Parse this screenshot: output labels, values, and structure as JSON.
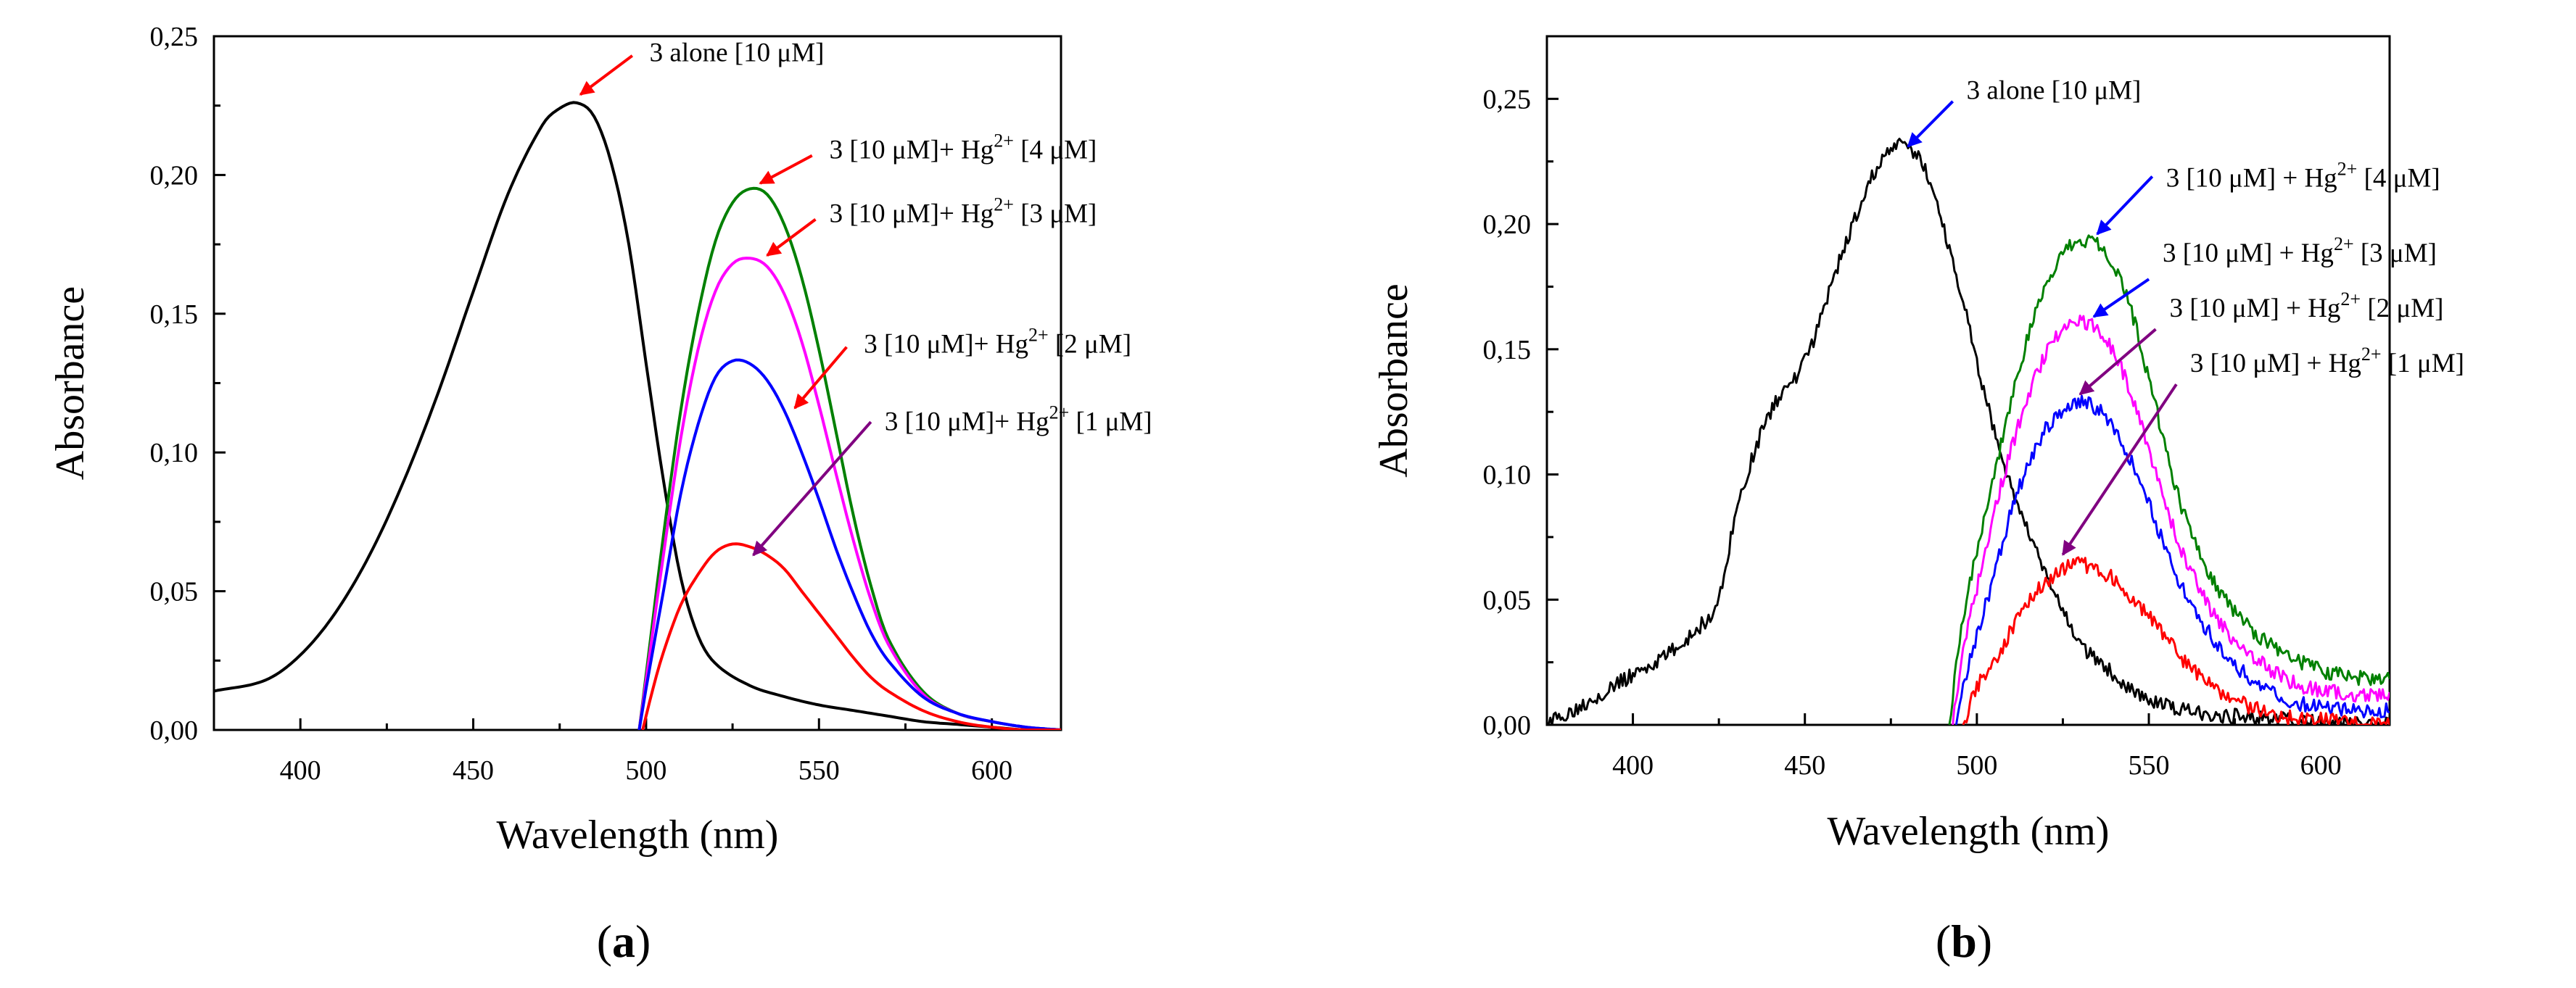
{
  "chart_data": [
    {
      "panel": "a",
      "type": "line",
      "panel_label": {
        "open": "(",
        "letter": "a",
        "close": ")"
      },
      "xlabel": "Wavelength (nm)",
      "ylabel": "Absorbance",
      "xlim": [
        375,
        620
      ],
      "ylim": [
        0,
        0.25
      ],
      "xticks": [
        400,
        450,
        500,
        550,
        600
      ],
      "xtick_labels": [
        "400",
        "450",
        "500",
        "550",
        "600"
      ],
      "yticks": [
        0,
        0.05,
        0.1,
        0.15,
        0.2,
        0.25
      ],
      "ytick_labels": [
        "0,00",
        "0,05",
        "0,10",
        "0,15",
        "0,20",
        "0,25"
      ],
      "series": [
        {
          "name": "3 alone [10 µM]",
          "color": "#000000",
          "noisy": false,
          "x": [
            375,
            390,
            400,
            410,
            420,
            430,
            440,
            450,
            460,
            470,
            475,
            480,
            485,
            490,
            495,
            500,
            505,
            510,
            515,
            520,
            530,
            540,
            550,
            560,
            570,
            580,
            590,
            600,
            610,
            620
          ],
          "y": [
            0.014,
            0.018,
            0.027,
            0.042,
            0.063,
            0.09,
            0.122,
            0.158,
            0.193,
            0.218,
            0.224,
            0.226,
            0.221,
            0.204,
            0.175,
            0.132,
            0.09,
            0.055,
            0.034,
            0.024,
            0.016,
            0.012,
            0.009,
            0.007,
            0.005,
            0.003,
            0.002,
            0.001,
            0.0,
            0.0
          ]
        },
        {
          "name": "3 [10 µM]+ Hg2+ [4 µM]",
          "color": "#008000",
          "noisy": false,
          "x": [
            498,
            500,
            505,
            510,
            515,
            520,
            525,
            530,
            535,
            540,
            545,
            550,
            555,
            560,
            565,
            570,
            580,
            590,
            600,
            610,
            620
          ],
          "y": [
            0.0,
            0.02,
            0.07,
            0.115,
            0.15,
            0.176,
            0.19,
            0.195,
            0.193,
            0.182,
            0.163,
            0.137,
            0.107,
            0.077,
            0.052,
            0.033,
            0.014,
            0.006,
            0.003,
            0.001,
            0.0
          ]
        },
        {
          "name": "3 [10 µM]+ Hg2+ [3 µM]",
          "color": "#ff00ff",
          "noisy": false,
          "x": [
            498,
            500,
            505,
            510,
            515,
            520,
            525,
            530,
            535,
            540,
            545,
            550,
            555,
            560,
            565,
            570,
            580,
            590,
            600,
            610,
            620
          ],
          "y": [
            0.0,
            0.018,
            0.063,
            0.105,
            0.137,
            0.158,
            0.168,
            0.17,
            0.167,
            0.157,
            0.14,
            0.117,
            0.092,
            0.068,
            0.047,
            0.031,
            0.013,
            0.006,
            0.003,
            0.001,
            0.0
          ]
        },
        {
          "name": "3 [10 µM]+ Hg2+ [2 µM]",
          "color": "#0000ff",
          "noisy": false,
          "x": [
            498,
            500,
            505,
            510,
            515,
            520,
            525,
            530,
            535,
            540,
            545,
            550,
            555,
            560,
            565,
            570,
            580,
            590,
            600,
            610,
            620
          ],
          "y": [
            0.0,
            0.015,
            0.05,
            0.085,
            0.11,
            0.127,
            0.133,
            0.132,
            0.126,
            0.115,
            0.1,
            0.083,
            0.065,
            0.049,
            0.035,
            0.025,
            0.012,
            0.006,
            0.003,
            0.001,
            0.0
          ]
        },
        {
          "name": "3 [10 µM]+ Hg2+ [1 µM]",
          "color": "#ff0000",
          "noisy": false,
          "x": [
            499,
            502,
            505,
            510,
            515,
            520,
            525,
            530,
            535,
            540,
            545,
            550,
            555,
            560,
            565,
            570,
            580,
            590,
            600,
            610,
            620
          ],
          "y": [
            0.0,
            0.015,
            0.028,
            0.045,
            0.056,
            0.064,
            0.067,
            0.066,
            0.063,
            0.058,
            0.05,
            0.042,
            0.034,
            0.026,
            0.019,
            0.014,
            0.007,
            0.003,
            0.001,
            0.0,
            0.0
          ]
        }
      ],
      "annotations": [
        {
          "text": "3 alone [10 µM]",
          "main": "3 alone [10 μM]",
          "sup": "",
          "tail": "",
          "arrow_color": "#ff0000",
          "head_x": 481,
          "head_y": 0.229,
          "tail_x": 496,
          "tail_y": 0.243,
          "text_x": 501,
          "text_y": 0.241
        },
        {
          "text": "3 [10 µM]+ Hg2+ [4 µM]",
          "main": "3 [10 μM]+ Hg",
          "sup": "2+",
          "tail": " [4 μM]",
          "arrow_color": "#ff0000",
          "head_x": 533,
          "head_y": 0.197,
          "tail_x": 548,
          "tail_y": 0.207,
          "text_x": 553,
          "text_y": 0.206
        },
        {
          "text": "3 [10 µM]+ Hg2+ [3 µM]",
          "main": "3 [10 μM]+ Hg",
          "sup": "2+",
          "tail": " [3 μM]",
          "arrow_color": "#ff0000",
          "head_x": 535,
          "head_y": 0.171,
          "tail_x": 549,
          "tail_y": 0.184,
          "text_x": 553,
          "text_y": 0.183
        },
        {
          "text": "3 [10 µM]+ Hg2+ [2 µM]",
          "main": "3 [10 μM]+ Hg",
          "sup": "2+",
          "tail": " [2 μM]",
          "arrow_color": "#ff0000",
          "head_x": 543,
          "head_y": 0.116,
          "tail_x": 558,
          "tail_y": 0.138,
          "text_x": 563,
          "text_y": 0.136
        },
        {
          "text": "3 [10 µM]+ Hg2+ [1 µM]",
          "main": "3 [10 μM]+ Hg",
          "sup": "2+",
          "tail": " [1 μM]",
          "arrow_color": "#800080",
          "head_x": 531,
          "head_y": 0.063,
          "tail_x": 565,
          "tail_y": 0.111,
          "text_x": 569,
          "text_y": 0.108
        }
      ]
    },
    {
      "panel": "b",
      "type": "line",
      "panel_label": {
        "open": "(",
        "letter": "b",
        "close": ")"
      },
      "xlabel": "Wavelength (nm)",
      "ylabel": "Absorbance",
      "xlim": [
        375,
        620
      ],
      "ylim": [
        0,
        0.275
      ],
      "xticks": [
        400,
        450,
        500,
        550,
        600
      ],
      "xtick_labels": [
        "400",
        "450",
        "500",
        "550",
        "600"
      ],
      "yticks": [
        0,
        0.05,
        0.1,
        0.15,
        0.2,
        0.25
      ],
      "ytick_labels": [
        "0,00",
        "0,05",
        "0,10",
        "0,15",
        "0,20",
        "0,25"
      ],
      "series": [
        {
          "name": "3 alone [10 µM]",
          "color": "#000000",
          "noisy": true,
          "x": [
            375,
            380,
            390,
            400,
            410,
            420,
            425,
            430,
            440,
            450,
            460,
            470,
            475,
            480,
            485,
            490,
            495,
            500,
            505,
            510,
            520,
            530,
            540,
            550,
            560,
            570,
            580,
            590,
            600,
            620
          ],
          "y": [
            0.0,
            0.004,
            0.012,
            0.02,
            0.028,
            0.04,
            0.05,
            0.085,
            0.125,
            0.145,
            0.185,
            0.22,
            0.23,
            0.23,
            0.222,
            0.2,
            0.175,
            0.145,
            0.118,
            0.095,
            0.06,
            0.033,
            0.02,
            0.01,
            0.006,
            0.004,
            0.003,
            0.002,
            0.001,
            0.0
          ]
        },
        {
          "name": "3 [10 µM] + Hg2+ [4 µM]",
          "color": "#008000",
          "noisy": true,
          "x": [
            492,
            495,
            500,
            505,
            510,
            515,
            520,
            525,
            530,
            535,
            540,
            545,
            550,
            555,
            560,
            570,
            580,
            590,
            600,
            610,
            620
          ],
          "y": [
            0.0,
            0.035,
            0.07,
            0.1,
            0.13,
            0.155,
            0.175,
            0.188,
            0.193,
            0.193,
            0.183,
            0.165,
            0.138,
            0.11,
            0.085,
            0.055,
            0.038,
            0.028,
            0.022,
            0.019,
            0.018
          ]
        },
        {
          "name": "3 [10 µM] + Hg2+ [3 µM]",
          "color": "#ff00ff",
          "noisy": true,
          "x": [
            493,
            496,
            500,
            505,
            510,
            515,
            520,
            525,
            530,
            535,
            540,
            545,
            550,
            555,
            560,
            570,
            580,
            590,
            600,
            610,
            620
          ],
          "y": [
            0.0,
            0.03,
            0.055,
            0.085,
            0.11,
            0.132,
            0.148,
            0.158,
            0.161,
            0.158,
            0.148,
            0.132,
            0.11,
            0.088,
            0.068,
            0.042,
            0.028,
            0.018,
            0.014,
            0.012,
            0.012
          ]
        },
        {
          "name": "3 [10 µM] + Hg2+ [2 µM]",
          "color": "#0000ff",
          "noisy": true,
          "x": [
            494,
            497,
            500,
            505,
            510,
            515,
            520,
            525,
            530,
            535,
            540,
            545,
            550,
            555,
            560,
            570,
            580,
            590,
            600,
            610,
            620
          ],
          "y": [
            0.0,
            0.02,
            0.035,
            0.06,
            0.085,
            0.104,
            0.118,
            0.126,
            0.129,
            0.126,
            0.118,
            0.105,
            0.088,
            0.07,
            0.054,
            0.032,
            0.018,
            0.01,
            0.007,
            0.006,
            0.006
          ]
        },
        {
          "name": "3 [10 µM] + Hg2+ [1 µM]",
          "color": "#ff0000",
          "noisy": true,
          "x": [
            496,
            500,
            505,
            510,
            515,
            520,
            525,
            530,
            535,
            540,
            545,
            550,
            555,
            560,
            570,
            580,
            590,
            600,
            610,
            620
          ],
          "y": [
            0.0,
            0.015,
            0.025,
            0.038,
            0.049,
            0.057,
            0.062,
            0.064,
            0.062,
            0.058,
            0.051,
            0.043,
            0.035,
            0.026,
            0.014,
            0.007,
            0.003,
            0.002,
            0.001,
            0.0
          ]
        }
      ],
      "annotations": [
        {
          "text": "3 alone [10 µM]",
          "main": "3 alone [10 μM]",
          "sup": "",
          "tail": "",
          "arrow_color": "#0000ff",
          "head_x": 480,
          "head_y": 0.231,
          "tail_x": 493,
          "tail_y": 0.249,
          "text_x": 497,
          "text_y": 0.25
        },
        {
          "text": "3 [10 µM] + Hg2+ [4 µM]",
          "main": "3 [10 μM] + Hg",
          "sup": "2+",
          "tail": " [4 μM]",
          "arrow_color": "#0000ff",
          "head_x": 535,
          "head_y": 0.196,
          "tail_x": 551,
          "tail_y": 0.219,
          "text_x": 555,
          "text_y": 0.215
        },
        {
          "text": "3 [10 µM] + Hg2+ [3 µM]",
          "main": "3 [10 μM] + Hg",
          "sup": "2+",
          "tail": " [3 μM]",
          "arrow_color": "#0000ff",
          "head_x": 534,
          "head_y": 0.163,
          "tail_x": 550,
          "tail_y": 0.178,
          "text_x": 554,
          "text_y": 0.185
        },
        {
          "text": "3 [10 µM] + Hg2+ [2 µM]",
          "main": "3 [10 μM] + Hg",
          "sup": "2+",
          "tail": " [2 μM]",
          "arrow_color": "#800080",
          "head_x": 530,
          "head_y": 0.132,
          "tail_x": 552,
          "tail_y": 0.158,
          "text_x": 556,
          "text_y": 0.163
        },
        {
          "text": "3 [10 µM] + Hg2+ [1 µM]",
          "main": "3 [10 μM] + Hg",
          "sup": "2+",
          "tail": " [1 μM]",
          "arrow_color": "#800080",
          "head_x": 525,
          "head_y": 0.068,
          "tail_x": 558,
          "tail_y": 0.136,
          "text_x": 562,
          "text_y": 0.141
        }
      ]
    }
  ]
}
